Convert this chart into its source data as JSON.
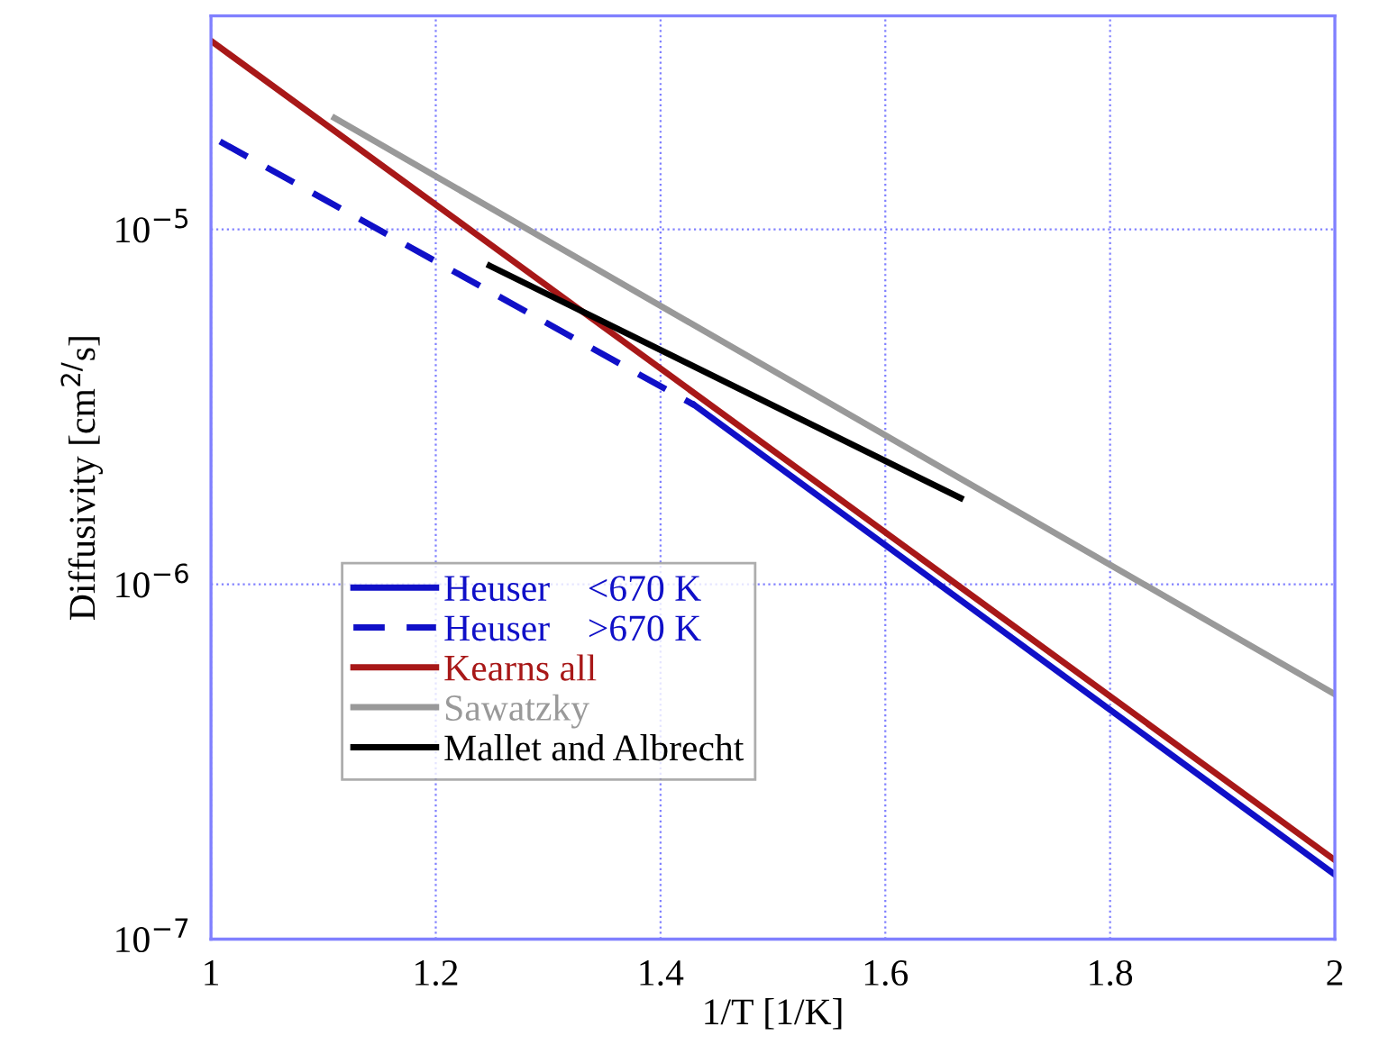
{
  "chart_data": {
    "type": "line",
    "xlabel": "1/T [1/K]",
    "ylabel": "Diffusivity [cm$^{2/}$s]",
    "log": "y",
    "xlim": [
      1,
      2
    ],
    "xticks": [
      1,
      1.2,
      1.4,
      1.6,
      1.8,
      2
    ],
    "ylim": [
      1e-07,
      4e-05
    ],
    "yticks": [
      {
        "value": 1e-07,
        "label": "10$^{−7}$"
      },
      {
        "value": 1e-06,
        "label": "10$^{−6}$"
      },
      {
        "value": 1e-05,
        "label": "10$^{−5}$"
      }
    ],
    "grid": true,
    "legend": "left",
    "series": [
      {
        "name": "Heuser    <670 K",
        "color": "#1010c8",
        "line_style": "solid",
        "x": [
          1.43,
          2
        ],
        "values": [
          3.2e-06,
          1.52e-07
        ]
      },
      {
        "name": "Heuser    >670 K",
        "color": "#1010c8",
        "line_style": "dashed",
        "x": [
          1.008,
          1.43
        ],
        "values": [
          1.77e-05,
          3.2e-06
        ]
      },
      {
        "name": "Kearns all",
        "color": "#a81818",
        "line_style": "solid",
        "x": [
          1,
          2
        ],
        "values": [
          3.4e-05,
          1.67e-07
        ]
      },
      {
        "name": "Sawatzky",
        "color": "#999999",
        "line_style": "solid",
        "x": [
          1.11,
          2
        ],
        "values": [
          2.06e-05,
          4.9e-07
        ]
      },
      {
        "name": "Mallet and Albrecht",
        "color": "#000000",
        "line_style": "solid",
        "x": [
          1.248,
          1.667
        ],
        "values": [
          7.9e-06,
          1.75e-06
        ]
      }
    ]
  }
}
